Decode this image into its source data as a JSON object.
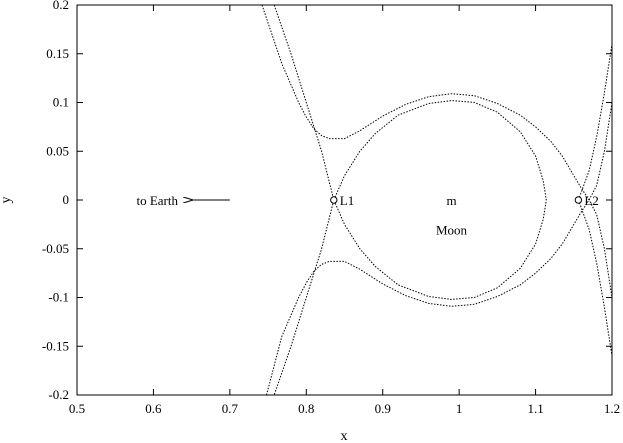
{
  "chart_data": {
    "type": "line",
    "title": "",
    "xlabel": "x",
    "ylabel": "y",
    "xlim": [
      0.5,
      1.2
    ],
    "ylim": [
      -0.2,
      0.2
    ],
    "x_ticks": [
      0.5,
      0.6,
      0.7,
      0.8,
      0.9,
      1.0,
      1.1,
      1.2
    ],
    "x_tick_labels": [
      "0.5",
      "0.6",
      "0.7",
      "0.8",
      "0.9",
      "1",
      "1.1",
      "1.2"
    ],
    "y_ticks": [
      0.2,
      0.15,
      0.1,
      0.05,
      0.0,
      -0.05,
      -0.1,
      -0.15,
      -0.2
    ],
    "y_tick_labels": [
      "0.2",
      "0.15",
      "0.1",
      "0.05",
      "0",
      "-0.05",
      "-0.1",
      "-0.15",
      "-0.2"
    ],
    "grid": false,
    "line_style": "dotted",
    "series": [
      {
        "values": [
          [
            0.742,
            0.2
          ],
          [
            0.768,
            0.14
          ],
          [
            0.79,
            0.1
          ],
          [
            0.8,
            0.085
          ],
          [
            0.81,
            0.073
          ],
          [
            0.82,
            0.066
          ],
          [
            0.83,
            0.063
          ],
          [
            0.85,
            0.063
          ],
          [
            0.87,
            0.071
          ],
          [
            0.9,
            0.086
          ],
          [
            0.93,
            0.098
          ],
          [
            0.96,
            0.106
          ],
          [
            0.99,
            0.109
          ],
          [
            1.02,
            0.107
          ],
          [
            1.05,
            0.099
          ],
          [
            1.08,
            0.087
          ],
          [
            1.1,
            0.075
          ],
          [
            1.12,
            0.06
          ],
          [
            1.135,
            0.045
          ],
          [
            1.15,
            0.025
          ],
          [
            1.16,
            0.012
          ],
          [
            1.17,
            0.0
          ],
          [
            1.18,
            -0.015
          ],
          [
            1.19,
            -0.05
          ],
          [
            1.2,
            -0.1
          ],
          [
            1.205,
            -0.15
          ],
          [
            1.21,
            -0.2
          ]
        ]
      },
      {
        "values": [
          [
            0.748,
            -0.2
          ],
          [
            0.768,
            -0.14
          ],
          [
            0.79,
            -0.1
          ],
          [
            0.8,
            -0.085
          ],
          [
            0.81,
            -0.073
          ],
          [
            0.82,
            -0.066
          ],
          [
            0.83,
            -0.063
          ],
          [
            0.85,
            -0.063
          ],
          [
            0.87,
            -0.071
          ],
          [
            0.9,
            -0.086
          ],
          [
            0.93,
            -0.098
          ],
          [
            0.96,
            -0.106
          ],
          [
            0.99,
            -0.109
          ],
          [
            1.02,
            -0.107
          ],
          [
            1.05,
            -0.099
          ],
          [
            1.08,
            -0.087
          ],
          [
            1.1,
            -0.075
          ],
          [
            1.12,
            -0.06
          ],
          [
            1.135,
            -0.045
          ],
          [
            1.15,
            -0.025
          ],
          [
            1.16,
            -0.012
          ],
          [
            1.17,
            0.0
          ],
          [
            1.18,
            0.015
          ],
          [
            1.19,
            0.05
          ],
          [
            1.2,
            0.1
          ],
          [
            1.205,
            0.15
          ],
          [
            1.21,
            0.2
          ]
        ]
      },
      {
        "values": [
          [
            0.758,
            0.2
          ],
          [
            0.78,
            0.15
          ],
          [
            0.8,
            0.1
          ],
          [
            0.82,
            0.05
          ],
          [
            0.836,
            0.0
          ],
          [
            0.85,
            0.025
          ],
          [
            0.87,
            0.05
          ],
          [
            0.89,
            0.068
          ],
          [
            0.92,
            0.087
          ],
          [
            0.96,
            0.099
          ],
          [
            0.99,
            0.102
          ],
          [
            1.02,
            0.1
          ],
          [
            1.05,
            0.09
          ],
          [
            1.08,
            0.07
          ],
          [
            1.1,
            0.045
          ],
          [
            1.11,
            0.02
          ],
          [
            1.114,
            0.0
          ],
          [
            1.11,
            -0.02
          ],
          [
            1.1,
            -0.045
          ],
          [
            1.08,
            -0.07
          ],
          [
            1.05,
            -0.09
          ],
          [
            1.02,
            -0.1
          ],
          [
            0.99,
            -0.102
          ],
          [
            0.96,
            -0.099
          ],
          [
            0.92,
            -0.087
          ],
          [
            0.89,
            -0.068
          ],
          [
            0.87,
            -0.05
          ],
          [
            0.85,
            -0.025
          ],
          [
            0.836,
            0.0
          ],
          [
            0.82,
            -0.05
          ],
          [
            0.8,
            -0.1
          ],
          [
            0.78,
            -0.15
          ],
          [
            0.758,
            -0.2
          ]
        ]
      },
      {
        "values": [
          [
            1.156,
            0.0
          ],
          [
            1.17,
            0.03
          ],
          [
            1.18,
            0.065
          ],
          [
            1.19,
            0.11
          ],
          [
            1.2,
            0.16
          ],
          [
            1.205,
            0.2
          ]
        ]
      },
      {
        "values": [
          [
            1.156,
            0.0
          ],
          [
            1.17,
            -0.03
          ],
          [
            1.18,
            -0.065
          ],
          [
            1.19,
            -0.11
          ],
          [
            1.2,
            -0.16
          ],
          [
            1.205,
            -0.2
          ]
        ]
      }
    ],
    "points": [
      {
        "label": "L1",
        "x": 0.836,
        "y": 0.0
      },
      {
        "label": "L2",
        "x": 1.156,
        "y": 0.0
      }
    ],
    "annotations": [
      {
        "text": "m",
        "x": 0.99,
        "y": 0.0
      },
      {
        "text": "Moon",
        "x": 0.99,
        "y": -0.03
      },
      {
        "text": "to Earth",
        "x": 0.605,
        "y": 0.0,
        "arrow_from_x": 0.7,
        "arrow_to_x": 0.652
      }
    ]
  }
}
